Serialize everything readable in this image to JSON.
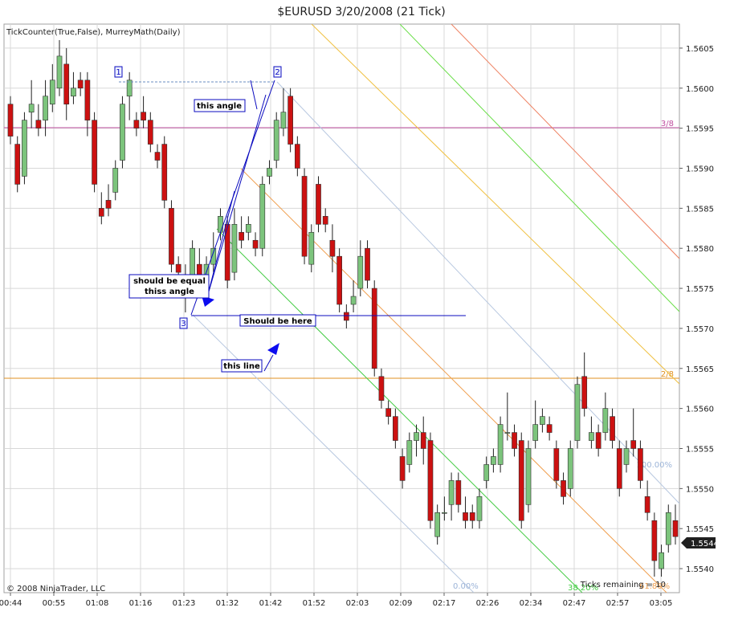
{
  "title": "$EURUSD  3/20/2008 (21 Tick)",
  "indicator_label": "TickCounter(True,False), MurreyMath(Daily)",
  "copyright": "© 2008 NinjaTrader, LLC",
  "ticks_remaining": "Ticks remaining = 10",
  "last_price": "1.5544",
  "colors": {
    "up": "#7cc47c",
    "down": "#cc1111",
    "wick": "#202020",
    "grid": "#d8d8d8",
    "murrey_3_8": "#c050a0",
    "murrey_2_8": "#e09020",
    "annotation": "#0b0bbf"
  },
  "annotations": {
    "this_angle": "this angle",
    "should_be_equal": "should be equal",
    "thiss_angle": "thiss angle",
    "should_be_here": "Should be here",
    "this_line": "this line",
    "pt1": "1",
    "pt2": "2",
    "pt3": "3"
  },
  "chart_data": {
    "type": "candlestick",
    "title": "$EURUSD  3/20/2008 (21 Tick)",
    "instrument": "$EURUSD",
    "date": "3/20/2008",
    "period": "21 Tick",
    "y_range": [
      1.5537,
      1.5608
    ],
    "y_ticks": [
      "1.5605",
      "1.5600",
      "1.5595",
      "1.5590",
      "1.5585",
      "1.5580",
      "1.5575",
      "1.5570",
      "1.5565",
      "1.5560",
      "1.5555",
      "1.5550",
      "1.5545",
      "1.5540"
    ],
    "x_ticks": [
      "00:44",
      "00:55",
      "01:08",
      "01:16",
      "01:23",
      "01:32",
      "01:42",
      "01:52",
      "02:03",
      "02:09",
      "02:17",
      "02:26",
      "02:34",
      "02:47",
      "02:57",
      "03:05"
    ],
    "grid": true,
    "murrey_levels": [
      {
        "label": "3/8",
        "value": 1.55945
      },
      {
        "label": "2/8",
        "value": 1.5564
      }
    ],
    "fib_channel_labels": [
      "100.00%",
      "0.00%",
      "38.20%",
      "61.80%"
    ],
    "candles": [
      [
        1.5598,
        1.5594,
        1.5599,
        1.5593
      ],
      [
        1.5593,
        1.5588,
        1.5594,
        1.5587
      ],
      [
        1.5589,
        1.5596,
        1.5597,
        1.5588
      ],
      [
        1.5597,
        1.5598,
        1.5601,
        1.5595
      ],
      [
        1.5596,
        1.5595,
        1.5598,
        1.5594
      ],
      [
        1.5596,
        1.5599,
        1.5601,
        1.5594
      ],
      [
        1.5598,
        1.5601,
        1.5603,
        1.5597
      ],
      [
        1.56,
        1.5604,
        1.5606,
        1.5599
      ],
      [
        1.5603,
        1.5598,
        1.5605,
        1.5596
      ],
      [
        1.5599,
        1.56,
        1.5602,
        1.5598
      ],
      [
        1.5601,
        1.56,
        1.5602,
        1.5599
      ],
      [
        1.5601,
        1.5596,
        1.5602,
        1.5594
      ],
      [
        1.5596,
        1.5588,
        1.5597,
        1.5587
      ],
      [
        1.5585,
        1.5584,
        1.5587,
        1.5583
      ],
      [
        1.5586,
        1.5585,
        1.5588,
        1.5584
      ],
      [
        1.5587,
        1.559,
        1.5591,
        1.5586
      ],
      [
        1.5591,
        1.5598,
        1.5599,
        1.559
      ],
      [
        1.5599,
        1.5601,
        1.5602,
        1.5596
      ],
      [
        1.5596,
        1.5595,
        1.5597,
        1.5594
      ],
      [
        1.5597,
        1.5596,
        1.5599,
        1.5595
      ],
      [
        1.5596,
        1.5593,
        1.5597,
        1.5592
      ],
      [
        1.5592,
        1.5591,
        1.5593,
        1.559
      ],
      [
        1.5593,
        1.5586,
        1.5594,
        1.5585
      ],
      [
        1.5585,
        1.5578,
        1.5586,
        1.5577
      ],
      [
        1.5578,
        1.5577,
        1.5579,
        1.5576
      ],
      [
        1.5576,
        1.5575,
        1.5578,
        1.5572
      ],
      [
        1.5576,
        1.558,
        1.5581,
        1.5575
      ],
      [
        1.5578,
        1.5576,
        1.558,
        1.5575
      ],
      [
        1.5576,
        1.5578,
        1.5579,
        1.5575
      ],
      [
        1.5578,
        1.558,
        1.5582,
        1.5577
      ],
      [
        1.5582,
        1.5584,
        1.5585,
        1.5581
      ],
      [
        1.5583,
        1.5576,
        1.5584,
        1.5575
      ],
      [
        1.5577,
        1.5583,
        1.5585,
        1.5576
      ],
      [
        1.5582,
        1.5581,
        1.5584,
        1.558
      ],
      [
        1.5582,
        1.5583,
        1.5584,
        1.5581
      ],
      [
        1.5581,
        1.558,
        1.5582,
        1.5579
      ],
      [
        1.558,
        1.5588,
        1.5589,
        1.5579
      ],
      [
        1.5589,
        1.559,
        1.5591,
        1.5588
      ],
      [
        1.5591,
        1.5596,
        1.5597,
        1.559
      ],
      [
        1.5595,
        1.5597,
        1.56,
        1.5594
      ],
      [
        1.5599,
        1.5593,
        1.56,
        1.5592
      ],
      [
        1.5593,
        1.559,
        1.5594,
        1.5589
      ],
      [
        1.5589,
        1.5579,
        1.559,
        1.5578
      ],
      [
        1.5578,
        1.5582,
        1.5583,
        1.5577
      ],
      [
        1.5588,
        1.5583,
        1.5589,
        1.5582
      ],
      [
        1.5584,
        1.5583,
        1.5585,
        1.5582
      ],
      [
        1.5581,
        1.5579,
        1.5583,
        1.5577
      ],
      [
        1.5579,
        1.5573,
        1.558,
        1.5572
      ],
      [
        1.5572,
        1.5571,
        1.5573,
        1.557
      ],
      [
        1.5573,
        1.5574,
        1.5576,
        1.5572
      ],
      [
        1.5575,
        1.5579,
        1.5581,
        1.5574
      ],
      [
        1.558,
        1.5576,
        1.5581,
        1.5575
      ],
      [
        1.5575,
        1.5565,
        1.5576,
        1.5564
      ],
      [
        1.5564,
        1.5561,
        1.5565,
        1.556
      ],
      [
        1.556,
        1.5559,
        1.5561,
        1.5558
      ],
      [
        1.5559,
        1.5556,
        1.556,
        1.5555
      ],
      [
        1.5554,
        1.5551,
        1.5555,
        1.555
      ],
      [
        1.5553,
        1.5556,
        1.5557,
        1.5552
      ],
      [
        1.5556,
        1.5557,
        1.5558,
        1.5554
      ],
      [
        1.5557,
        1.5555,
        1.5559,
        1.5553
      ],
      [
        1.5556,
        1.5546,
        1.5557,
        1.5545
      ],
      [
        1.5544,
        1.5547,
        1.5548,
        1.5543
      ],
      [
        1.5547,
        1.5547,
        1.5549,
        1.5546
      ],
      [
        1.5548,
        1.5551,
        1.5552,
        1.5546
      ],
      [
        1.5551,
        1.5548,
        1.5552,
        1.5547
      ],
      [
        1.5547,
        1.5546,
        1.5549,
        1.5545
      ],
      [
        1.5547,
        1.5546,
        1.5548,
        1.5545
      ],
      [
        1.5546,
        1.5549,
        1.555,
        1.5545
      ],
      [
        1.5551,
        1.5553,
        1.5554,
        1.555
      ],
      [
        1.5553,
        1.5554,
        1.5555,
        1.5552
      ],
      [
        1.5553,
        1.5558,
        1.5559,
        1.5552
      ],
      [
        1.5557,
        1.5557,
        1.5562,
        1.5556
      ],
      [
        1.5557,
        1.5555,
        1.5558,
        1.5554
      ],
      [
        1.5556,
        1.5546,
        1.5557,
        1.5545
      ],
      [
        1.5548,
        1.5555,
        1.5556,
        1.5547
      ],
      [
        1.5556,
        1.5558,
        1.5561,
        1.5555
      ],
      [
        1.5558,
        1.5559,
        1.556,
        1.5557
      ],
      [
        1.5558,
        1.5557,
        1.5559,
        1.5556
      ],
      [
        1.5555,
        1.5551,
        1.5556,
        1.555
      ],
      [
        1.5551,
        1.5549,
        1.5552,
        1.5548
      ],
      [
        1.555,
        1.5555,
        1.5556,
        1.5549
      ],
      [
        1.5556,
        1.5563,
        1.5564,
        1.5555
      ],
      [
        1.5564,
        1.556,
        1.5567,
        1.5559
      ],
      [
        1.5556,
        1.5557,
        1.5559,
        1.5555
      ],
      [
        1.5557,
        1.5555,
        1.5558,
        1.5554
      ],
      [
        1.5557,
        1.556,
        1.5562,
        1.5556
      ],
      [
        1.5559,
        1.5556,
        1.556,
        1.5555
      ],
      [
        1.5555,
        1.555,
        1.5556,
        1.5549
      ],
      [
        1.5553,
        1.5555,
        1.5556,
        1.5552
      ],
      [
        1.5556,
        1.5555,
        1.556,
        1.5554
      ],
      [
        1.5555,
        1.5551,
        1.5556,
        1.555
      ],
      [
        1.5549,
        1.5547,
        1.5551,
        1.5546
      ],
      [
        1.5546,
        1.5541,
        1.5547,
        1.5539
      ],
      [
        1.554,
        1.5542,
        1.5543,
        1.5539
      ],
      [
        1.5543,
        1.5547,
        1.5548,
        1.5542
      ],
      [
        1.5546,
        1.5544,
        1.5548,
        1.5543
      ]
    ]
  }
}
